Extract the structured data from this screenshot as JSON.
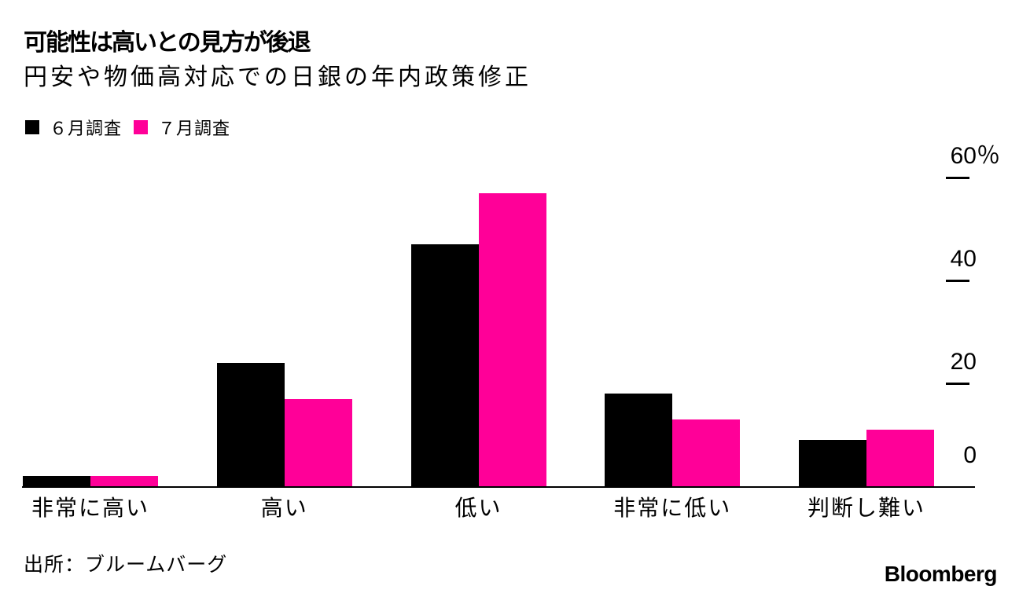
{
  "header": {
    "title": "可能性は高いとの見方が後退",
    "subtitle": "円安や物価高対応での日銀の年内政策修正"
  },
  "colors": {
    "series_june": "#000000",
    "series_july": "#ff0098",
    "axis": "#000000",
    "background": "#ffffff"
  },
  "chart_data": {
    "type": "bar",
    "title": "可能性は高いとの見方が後退",
    "subtitle": "円安や物価高対応での日銀の年内政策修正",
    "categories": [
      "非常に高い",
      "高い",
      "低い",
      "非常に低い",
      "判断し難い"
    ],
    "series": [
      {
        "name": "６月調査",
        "color": "#000000",
        "values": [
          2,
          24,
          47,
          18,
          9
        ]
      },
      {
        "name": "７月調査",
        "color": "#ff0098",
        "values": [
          2,
          17,
          57,
          13,
          11
        ]
      }
    ],
    "unit": "%",
    "ylim": [
      0,
      60
    ],
    "yticks": [
      {
        "value": 0,
        "label": "0",
        "suffix": "",
        "dash": false
      },
      {
        "value": 20,
        "label": "20",
        "suffix": "",
        "dash": true
      },
      {
        "value": 40,
        "label": "40",
        "suffix": "",
        "dash": true
      },
      {
        "value": 60,
        "label": "60",
        "suffix": "％",
        "dash": true
      }
    ],
    "grid": false,
    "axis_side": "right",
    "legend_position": "top-left"
  },
  "footer": {
    "source": "出所：ブルームバーグ",
    "logo": "Bloomberg"
  }
}
